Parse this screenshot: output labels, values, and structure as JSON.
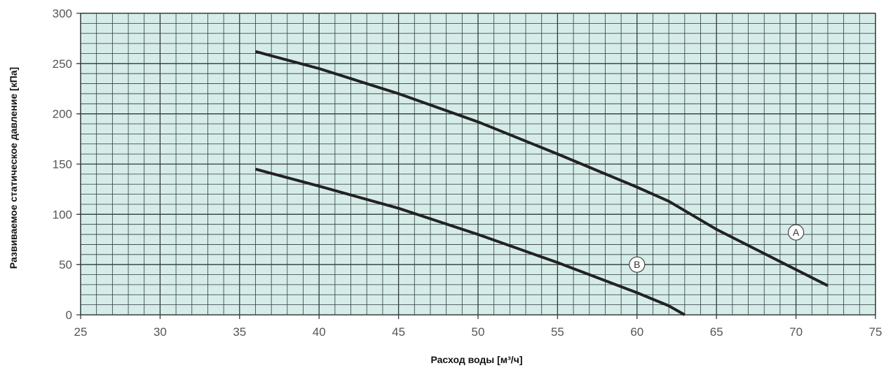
{
  "chart_data": {
    "type": "line",
    "xlabel": "Расход воды [м³/ч]",
    "ylabel": "Развиваемое статическое давление [кПа]",
    "xlim": [
      25,
      75
    ],
    "ylim": [
      0,
      300
    ],
    "x_ticks": [
      "25",
      "30",
      "35",
      "40",
      "45",
      "50",
      "55",
      "60",
      "65",
      "70",
      "75"
    ],
    "y_ticks": [
      "0",
      "50",
      "100",
      "150",
      "200",
      "250",
      "300"
    ],
    "x_minor_step": 1,
    "y_minor_step": 10,
    "grid": true,
    "plot_background": "#d6ece8",
    "grid_color": "#2f3a3a",
    "line_color": "#222222",
    "series": [
      {
        "name": "A",
        "label_at": [
          70,
          82
        ],
        "x": [
          36,
          40,
          45,
          50,
          55,
          60,
          62,
          65,
          70,
          72
        ],
        "y": [
          262,
          245,
          220,
          192,
          160,
          127,
          113,
          85,
          45,
          29
        ]
      },
      {
        "name": "B",
        "label_at": [
          60,
          50
        ],
        "x": [
          36,
          40,
          45,
          50,
          55,
          60,
          62,
          63
        ],
        "y": [
          145,
          128,
          106,
          80,
          52,
          22,
          9,
          0
        ]
      }
    ]
  }
}
